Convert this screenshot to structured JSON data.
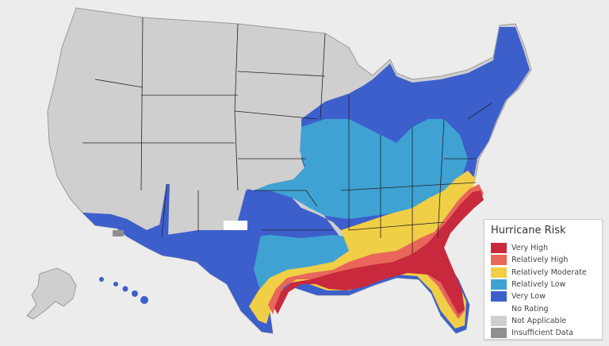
{
  "legend": {
    "title": "Hurricane Risk",
    "items": [
      {
        "label": "Very High",
        "color": "#c8293d"
      },
      {
        "label": "Relatively High",
        "color": "#e8675a"
      },
      {
        "label": "Relatively Moderate",
        "color": "#f0cf46"
      },
      {
        "label": "Relatively Low",
        "color": "#3fa2d3"
      },
      {
        "label": "Very Low",
        "color": "#3d5fcc"
      },
      {
        "label": "No Rating",
        "color": "#ffffff"
      },
      {
        "label": "Not Applicable",
        "color": "#cfcfcf"
      },
      {
        "label": "Insufficient Data",
        "color": "#8f8f8f"
      }
    ]
  },
  "colors": {
    "background": "#ececec",
    "not_applicable": "#cfcfcf",
    "very_low": "#3d5fcc",
    "relatively_low": "#3fa2d3",
    "relatively_moderate": "#f0cf46",
    "relatively_high": "#e8675a",
    "very_high": "#c8293d",
    "insufficient_data": "#8f8f8f",
    "no_rating": "#ffffff",
    "state_border": "#222222"
  }
}
